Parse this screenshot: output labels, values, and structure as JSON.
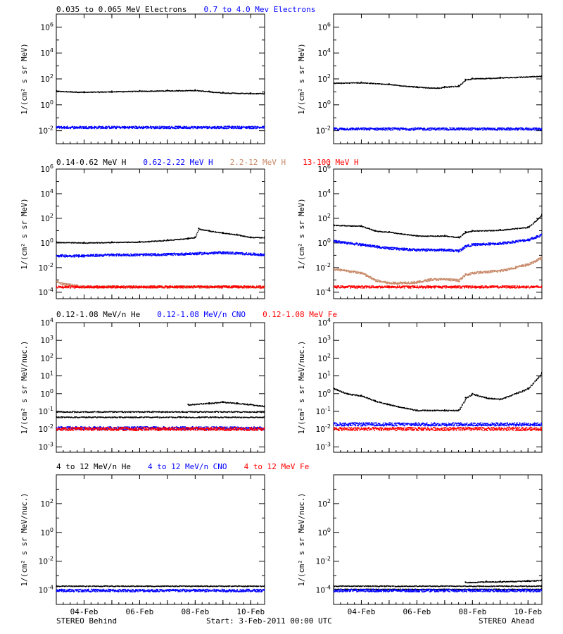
{
  "colors": {
    "black": "#000000",
    "blue": "#0000ff",
    "salmon": "#c88a6a",
    "red": "#ff0000"
  },
  "footer": {
    "left": "STEREO Behind",
    "center": "Start:  3-Feb-2011 00:00 UTC",
    "right": "STEREO Ahead"
  },
  "x_tick_labels": [
    "04-Feb",
    "06-Feb",
    "08-Feb",
    "10-Feb"
  ],
  "rows": [
    {
      "legend": [
        {
          "text": "0.035 to 0.065 MeV Electrons",
          "color": "#000000"
        },
        {
          "text": "0.7 to 4.0 Mev Electrons",
          "color": "#0000ff"
        }
      ],
      "ylabel": "1/(cm² s sr MeV)"
    },
    {
      "legend": [
        {
          "text": "0.14-0.62 MeV H",
          "color": "#000000"
        },
        {
          "text": "0.62-2.22 MeV H",
          "color": "#0000ff"
        },
        {
          "text": "2.2-12 MeV H",
          "color": "#c88a6a"
        },
        {
          "text": "13-100 MeV H",
          "color": "#ff0000"
        }
      ],
      "ylabel": "1/(cm² s sr MeV)"
    },
    {
      "legend": [
        {
          "text": "0.12-1.08 MeV/n He",
          "color": "#000000"
        },
        {
          "text": "0.12-1.08 MeV/n CNO",
          "color": "#0000ff"
        },
        {
          "text": "0.12-1.08 MeV Fe",
          "color": "#ff0000"
        }
      ],
      "ylabel": "1/(cm² s sr MeV/nuc.)"
    },
    {
      "legend": [
        {
          "text": "4 to 12 MeV/n He",
          "color": "#000000"
        },
        {
          "text": "4 to 12 MeV/n CNO",
          "color": "#0000ff"
        },
        {
          "text": "4 to 12 MeV Fe",
          "color": "#ff0000"
        }
      ],
      "ylabel": "1/(cm² s sr MeV/nuc.)"
    }
  ],
  "chart_data": [
    {
      "type": "scatter",
      "panel": "electrons-behind",
      "yscale": "log",
      "xlim": [
        "2011-02-03",
        "2011-02-10T12:00"
      ],
      "ylim": [
        0.001,
        10000000
      ],
      "yticks": [
        {
          "value": 0.01,
          "label": "10^-2"
        },
        {
          "value": 1,
          "label": "10^0"
        },
        {
          "value": 100,
          "label": "10^2"
        },
        {
          "value": 10000,
          "label": "10^4"
        },
        {
          "value": 1000000,
          "label": "10^6"
        }
      ],
      "series": [
        {
          "color": "#000000",
          "x": [
            "2011-02-03",
            "2011-02-04",
            "2011-02-05",
            "2011-02-06",
            "2011-02-07",
            "2011-02-08",
            "2011-02-08T12:00",
            "2011-02-09",
            "2011-02-10",
            "2011-02-10T12:00"
          ],
          "y": [
            12,
            10,
            11,
            12,
            13,
            14,
            11,
            9,
            8,
            8
          ]
        },
        {
          "color": "#0000ff",
          "x": [
            "2011-02-03",
            "2011-02-10T12:00"
          ],
          "y": [
            0.02,
            0.02
          ]
        }
      ]
    },
    {
      "type": "scatter",
      "panel": "electrons-ahead",
      "yscale": "log",
      "xlim": [
        "2011-02-03",
        "2011-02-10T12:00"
      ],
      "ylim": [
        0.001,
        10000000
      ],
      "yticks": [
        {
          "value": 0.01,
          "label": "10^-2"
        },
        {
          "value": 1,
          "label": "10^0"
        },
        {
          "value": 100,
          "label": "10^2"
        },
        {
          "value": 10000,
          "label": "10^4"
        },
        {
          "value": 1000000,
          "label": "10^6"
        }
      ],
      "series": [
        {
          "color": "#000000",
          "x": [
            "2011-02-03",
            "2011-02-04",
            "2011-02-05",
            "2011-02-06",
            "2011-02-06T18:00",
            "2011-02-07",
            "2011-02-07T12:00",
            "2011-02-07T18:00",
            "2011-02-08",
            "2011-02-09",
            "2011-02-10T12:00"
          ],
          "y": [
            50,
            55,
            40,
            25,
            20,
            25,
            30,
            90,
            110,
            130,
            170
          ]
        },
        {
          "color": "#0000ff",
          "x": [
            "2011-02-03",
            "2011-02-10T12:00"
          ],
          "y": [
            0.015,
            0.015
          ]
        }
      ]
    },
    {
      "type": "scatter",
      "panel": "protons-behind",
      "yscale": "log",
      "xlim": [
        "2011-02-03",
        "2011-02-10T12:00"
      ],
      "ylim": [
        3e-05,
        1000000
      ],
      "yticks": [
        {
          "value": 0.0001,
          "label": "10^-4"
        },
        {
          "value": 0.01,
          "label": "10^-2"
        },
        {
          "value": 1,
          "label": "10^0"
        },
        {
          "value": 100,
          "label": "10^2"
        },
        {
          "value": 10000,
          "label": "10^4"
        },
        {
          "value": 1000000,
          "label": "10^6"
        }
      ],
      "series": [
        {
          "color": "#000000",
          "x": [
            "2011-02-03",
            "2011-02-04",
            "2011-02-05",
            "2011-02-06",
            "2011-02-07",
            "2011-02-07T18:00",
            "2011-02-08",
            "2011-02-08T03:00",
            "2011-02-08T12:00",
            "2011-02-09",
            "2011-02-09T12:00",
            "2011-02-10",
            "2011-02-10T12:00"
          ],
          "y": [
            1.2,
            1.1,
            1.2,
            1.3,
            1.8,
            2.5,
            3,
            15,
            10,
            7,
            5,
            3,
            3
          ]
        },
        {
          "color": "#0000ff",
          "x": [
            "2011-02-03",
            "2011-02-04",
            "2011-02-05",
            "2011-02-06",
            "2011-02-07",
            "2011-02-08",
            "2011-02-09",
            "2011-02-10",
            "2011-02-10T12:00"
          ],
          "y": [
            0.1,
            0.1,
            0.12,
            0.12,
            0.13,
            0.15,
            0.18,
            0.14,
            0.12
          ]
        },
        {
          "color": "#c88a6a",
          "x": [
            "2011-02-03",
            "2011-02-03T06:00",
            "2011-02-04",
            "2011-02-10T12:00"
          ],
          "y": [
            0.0008,
            0.0005,
            0.0003,
            0.0003
          ]
        },
        {
          "color": "#ff0000",
          "x": [
            "2011-02-03",
            "2011-02-10T12:00"
          ],
          "y": [
            0.0003,
            0.0003
          ]
        }
      ]
    },
    {
      "type": "scatter",
      "panel": "protons-ahead",
      "yscale": "log",
      "xlim": [
        "2011-02-03",
        "2011-02-10T12:00"
      ],
      "ylim": [
        3e-05,
        1000000
      ],
      "yticks": [
        {
          "value": 0.0001,
          "label": "10^-4"
        },
        {
          "value": 0.01,
          "label": "10^-2"
        },
        {
          "value": 1,
          "label": "10^0"
        },
        {
          "value": 100,
          "label": "10^2"
        },
        {
          "value": 10000,
          "label": "10^4"
        },
        {
          "value": 1000000,
          "label": "10^6"
        }
      ],
      "series": [
        {
          "color": "#000000",
          "x": [
            "2011-02-03",
            "2011-02-04",
            "2011-02-04T12:00",
            "2011-02-05",
            "2011-02-06",
            "2011-02-07",
            "2011-02-07T12:00",
            "2011-02-07T18:00",
            "2011-02-08",
            "2011-02-09",
            "2011-02-10",
            "2011-02-10T12:00"
          ],
          "y": [
            30,
            25,
            10,
            8,
            4,
            4,
            3,
            8,
            10,
            12,
            20,
            200
          ]
        },
        {
          "color": "#0000ff",
          "x": [
            "2011-02-03",
            "2011-02-04",
            "2011-02-05",
            "2011-02-06",
            "2011-02-07",
            "2011-02-07T12:00",
            "2011-02-07T18:00",
            "2011-02-08",
            "2011-02-09",
            "2011-02-10",
            "2011-02-10T12:00"
          ],
          "y": [
            1.5,
            0.8,
            0.4,
            0.3,
            0.3,
            0.25,
            0.6,
            0.8,
            1,
            2,
            5
          ]
        },
        {
          "color": "#c88a6a",
          "x": [
            "2011-02-03",
            "2011-02-04",
            "2011-02-04T12:00",
            "2011-02-05",
            "2011-02-06",
            "2011-02-06T12:00",
            "2011-02-07",
            "2011-02-07T12:00",
            "2011-02-07T18:00",
            "2011-02-08",
            "2011-02-09",
            "2011-02-10",
            "2011-02-10T12:00"
          ],
          "y": [
            0.008,
            0.004,
            0.001,
            0.0006,
            0.0007,
            0.0012,
            0.0012,
            0.001,
            0.003,
            0.004,
            0.006,
            0.02,
            0.07
          ]
        },
        {
          "color": "#ff0000",
          "x": [
            "2011-02-03",
            "2011-02-10T12:00"
          ],
          "y": [
            0.0003,
            0.0003
          ]
        }
      ]
    },
    {
      "type": "scatter",
      "panel": "heavy-low-behind",
      "yscale": "log",
      "xlim": [
        "2011-02-03",
        "2011-02-10T12:00"
      ],
      "ylim": [
        0.0005,
        10000
      ],
      "yticks": [
        {
          "value": 0.001,
          "label": "10^-3"
        },
        {
          "value": 0.01,
          "label": "10^-2"
        },
        {
          "value": 0.1,
          "label": "10^-1"
        },
        {
          "value": 1,
          "label": "10^0"
        },
        {
          "value": 10,
          "label": "10^1"
        },
        {
          "value": 100,
          "label": "10^2"
        },
        {
          "value": 1000,
          "label": "10^3"
        },
        {
          "value": 10000,
          "label": "10^4"
        }
      ],
      "series": [
        {
          "color": "#000000",
          "x": [
            "2011-02-03",
            "2011-02-10T12:00"
          ],
          "y": [
            0.1,
            0.1
          ]
        },
        {
          "color": "#000000",
          "x": [
            "2011-02-03",
            "2011-02-10T12:00"
          ],
          "y": [
            0.05,
            0.05
          ]
        },
        {
          "color": "#000000",
          "x": [
            "2011-02-07T18:00",
            "2011-02-08T12:00",
            "2011-02-09",
            "2011-02-09T12:00",
            "2011-02-10",
            "2011-02-10T12:00"
          ],
          "y": [
            0.25,
            0.3,
            0.35,
            0.3,
            0.25,
            0.2
          ]
        },
        {
          "color": "#0000ff",
          "x": [
            "2011-02-03",
            "2011-02-10T12:00"
          ],
          "y": [
            0.012,
            0.012
          ]
        },
        {
          "color": "#ff0000",
          "x": [
            "2011-02-03",
            "2011-02-10T12:00"
          ],
          "y": [
            0.011,
            0.011
          ]
        }
      ]
    },
    {
      "type": "scatter",
      "panel": "heavy-low-ahead",
      "yscale": "log",
      "xlim": [
        "2011-02-03",
        "2011-02-10T12:00"
      ],
      "ylim": [
        0.0005,
        10000
      ],
      "yticks": [
        {
          "value": 0.001,
          "label": "10^-3"
        },
        {
          "value": 0.01,
          "label": "10^-2"
        },
        {
          "value": 0.1,
          "label": "10^-1"
        },
        {
          "value": 1,
          "label": "10^0"
        },
        {
          "value": 10,
          "label": "10^1"
        },
        {
          "value": 100,
          "label": "10^2"
        },
        {
          "value": 1000,
          "label": "10^3"
        },
        {
          "value": 10000,
          "label": "10^4"
        }
      ],
      "series": [
        {
          "color": "#000000",
          "x": [
            "2011-02-03",
            "2011-02-03T12:00",
            "2011-02-04",
            "2011-02-04T12:00",
            "2011-02-05",
            "2011-02-06",
            "2011-02-07",
            "2011-02-07T12:00",
            "2011-02-07T18:00",
            "2011-02-08",
            "2011-02-08T12:00",
            "2011-02-09",
            "2011-02-10",
            "2011-02-10T12:00"
          ],
          "y": [
            2,
            1,
            0.8,
            0.4,
            0.25,
            0.12,
            0.12,
            0.12,
            0.6,
            1,
            0.6,
            0.5,
            2,
            15
          ]
        },
        {
          "color": "#0000ff",
          "x": [
            "2011-02-03",
            "2011-02-10T12:00"
          ],
          "y": [
            0.02,
            0.02
          ]
        },
        {
          "color": "#ff0000",
          "x": [
            "2011-02-03",
            "2011-02-10T12:00"
          ],
          "y": [
            0.011,
            0.011
          ]
        }
      ]
    },
    {
      "type": "scatter",
      "panel": "heavy-high-behind",
      "yscale": "log",
      "xlim": [
        "2011-02-03",
        "2011-02-10T12:00"
      ],
      "ylim": [
        1e-05,
        10000
      ],
      "yticks": [
        {
          "value": 0.0001,
          "label": "10^-4"
        },
        {
          "value": 0.01,
          "label": "10^-2"
        },
        {
          "value": 1,
          "label": "10^0"
        },
        {
          "value": 100,
          "label": "10^2"
        }
      ],
      "series": [
        {
          "color": "#000000",
          "x": [
            "2011-02-03",
            "2011-02-10T12:00"
          ],
          "y": [
            0.0002,
            0.0002
          ]
        },
        {
          "color": "#0000ff",
          "x": [
            "2011-02-03",
            "2011-02-10T12:00"
          ],
          "y": [
            0.0001,
            0.0001
          ]
        }
      ]
    },
    {
      "type": "scatter",
      "panel": "heavy-high-ahead",
      "yscale": "log",
      "xlim": [
        "2011-02-03",
        "2011-02-10T12:00"
      ],
      "ylim": [
        1e-05,
        10000
      ],
      "yticks": [
        {
          "value": 0.0001,
          "label": "10^-4"
        },
        {
          "value": 0.01,
          "label": "10^-2"
        },
        {
          "value": 1,
          "label": "10^0"
        },
        {
          "value": 100,
          "label": "10^2"
        }
      ],
      "series": [
        {
          "color": "#000000",
          "x": [
            "2011-02-03",
            "2011-02-10T12:00"
          ],
          "y": [
            0.0002,
            0.0002
          ]
        },
        {
          "color": "#000000",
          "x": [
            "2011-02-03",
            "2011-02-10T12:00"
          ],
          "y": [
            0.00012,
            0.00012
          ]
        },
        {
          "color": "#000000",
          "x": [
            "2011-02-07T18:00",
            "2011-02-08T12:00",
            "2011-02-09",
            "2011-02-10",
            "2011-02-10T12:00"
          ],
          "y": [
            0.00035,
            0.0004,
            0.0004,
            0.00045,
            0.0005
          ]
        },
        {
          "color": "#0000ff",
          "x": [
            "2011-02-03",
            "2011-02-10T12:00"
          ],
          "y": [
            0.0001,
            0.0001
          ]
        }
      ]
    }
  ]
}
